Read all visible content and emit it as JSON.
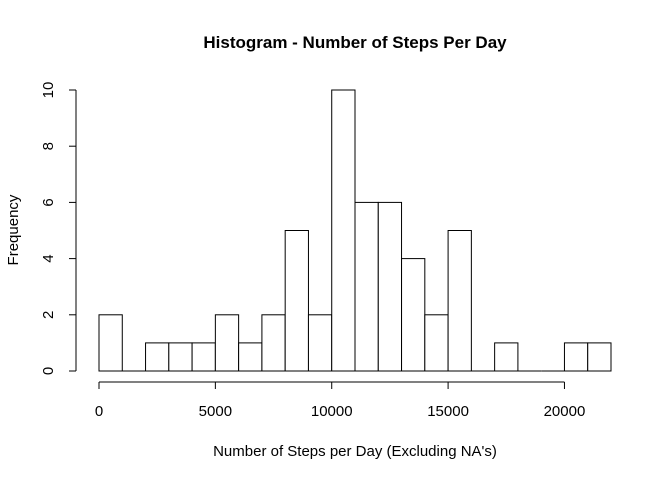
{
  "chart_data": {
    "type": "bar",
    "title": "Histogram - Number of Steps Per Day",
    "xlabel": "Number of Steps per Day (Excluding NA's)",
    "ylabel": "Frequency",
    "bin_width": 1000,
    "bin_start": 0,
    "bin_end": 22000,
    "values": [
      2,
      0,
      1,
      1,
      1,
      2,
      1,
      2,
      5,
      2,
      10,
      6,
      6,
      4,
      2,
      5,
      0,
      1,
      0,
      0,
      1,
      1
    ],
    "xlim": [
      0,
      22000
    ],
    "ylim": [
      0,
      10
    ],
    "x_ticks": [
      0,
      5000,
      10000,
      15000,
      20000
    ],
    "x_tick_labels": [
      "0",
      "5000",
      "10000",
      "15000",
      "20000"
    ],
    "y_ticks": [
      0,
      2,
      4,
      6,
      8,
      10
    ],
    "y_tick_labels": [
      "0",
      "2",
      "4",
      "6",
      "8",
      "10"
    ],
    "grid": false,
    "bar_fill": "#ffffff",
    "bar_stroke": "#000000"
  }
}
